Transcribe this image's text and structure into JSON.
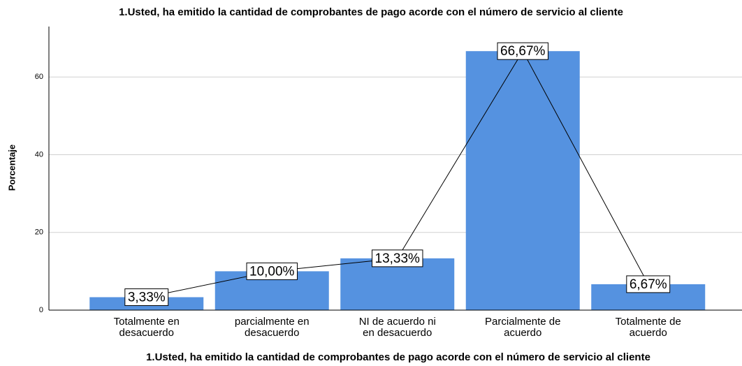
{
  "chart_data": {
    "type": "bar",
    "title": "1.Usted, ha emitido la cantidad de comprobantes de pago acorde con el número de servicio al cliente",
    "x_label": "1.Usted, ha emitido la cantidad de comprobantes de pago acorde con el número de servicio al cliente",
    "y_label": "Porcentaje",
    "categories": [
      "Totalmente en desacuerdo",
      "parcialmente en desacuerdo",
      "NI de acuerdo ni en desacuerdo",
      "Parcialmente de acuerdo",
      "Totalmente de acuerdo"
    ],
    "values": [
      3.33,
      10.0,
      13.33,
      66.67,
      6.67
    ],
    "value_labels": [
      "3,33%",
      "10,00%",
      "13,33%",
      "66,67%",
      "6,67%"
    ],
    "color": "#5592e0",
    "ylim": [
      0,
      73
    ],
    "yticks": [
      0,
      20,
      40,
      60
    ],
    "grid": true
  }
}
